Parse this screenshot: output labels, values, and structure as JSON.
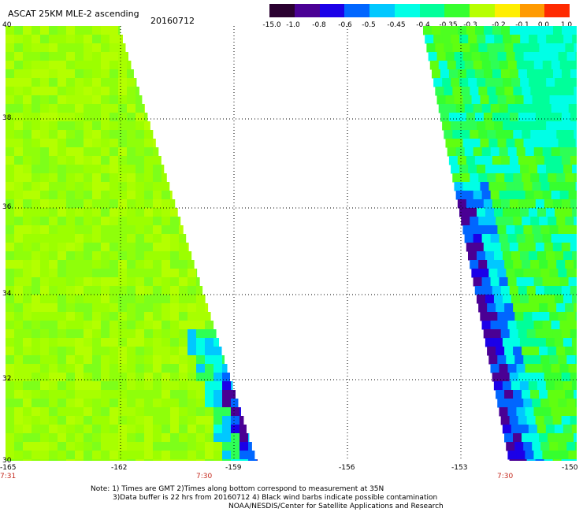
{
  "title": "ASCAT 25KM MLE-2 ascending",
  "date": "20160712",
  "colorbar": {
    "colors": [
      "#2a0030",
      "#4a0094",
      "#1b00e8",
      "#0066ff",
      "#00c8ff",
      "#00ffe6",
      "#00ff9a",
      "#36ff2f",
      "#b7ff00",
      "#ffee00",
      "#ff9a00",
      "#ff2a00"
    ],
    "labels": [
      "-15.0",
      "-1.0",
      "-0.8",
      "-0.6",
      "-0.5",
      "-0.45",
      "-0.4",
      "-0.35",
      "-0.3",
      "-0.2",
      "-0.1",
      "0.0",
      "1.0"
    ]
  },
  "map": {
    "lat_labels": [
      "40",
      "38",
      "36",
      "34",
      "32",
      "30"
    ],
    "lon_labels": [
      "-165",
      "-162",
      "-159",
      "-156",
      "-153",
      "-150"
    ],
    "time_labels": [
      "7:31",
      "7:30",
      "7:30"
    ]
  },
  "notes": [
    "Note: 1) Times are GMT 2)Times along bottom correspond to measurement at 35N",
    "3)Data buffer is 22 hrs from 20160712 4) Black wind barbs indicate possible contamination",
    "NOAA/NESDIS/Center for Satellite Applications and Research"
  ]
}
